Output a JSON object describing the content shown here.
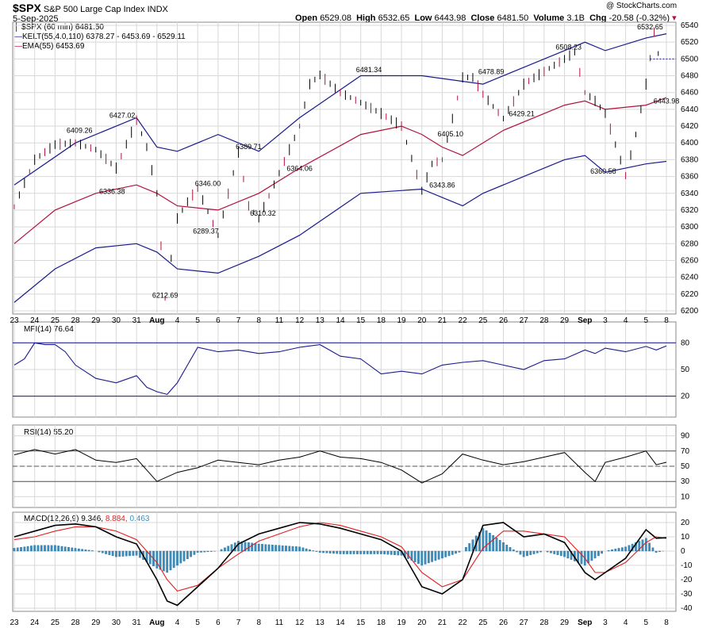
{
  "header": {
    "symbol": "$SPX",
    "name": "S&P 500 Large Cap Index",
    "exchange": "INDX",
    "date": "5-Sep-2025",
    "open_label": "Open",
    "open": "6529.08",
    "high_label": "High",
    "high": "6532.65",
    "low_label": "Low",
    "low": "6443.98",
    "close_label": "Close",
    "close": "6481.50",
    "volume_label": "Volume",
    "volume": "3.1B",
    "chg_label": "Chg",
    "chg": "-20.58 (-0.32%)",
    "watermark": "@ StockCharts.com"
  },
  "legend": {
    "price": "$SPX (60 min) 6481.50",
    "kelt": "KELT(55,4.0,110) 6378.27 - 6453.69 - 6529.11",
    "ema": "EMA(55) 6453.69"
  },
  "colors": {
    "kelt": "#1a1a8c",
    "ema": "#b0123c",
    "price": "#000000",
    "mfi": "#1a1a8c",
    "macd_signal": "#e02020",
    "hist": "#3a8fc0",
    "grid": "#d8d8d8",
    "dash": "#1a1a8c"
  },
  "x_labels": [
    {
      "i": 0,
      "t": "23"
    },
    {
      "i": 1,
      "t": "24"
    },
    {
      "i": 2,
      "t": "25"
    },
    {
      "i": 3,
      "t": "28"
    },
    {
      "i": 4,
      "t": "29"
    },
    {
      "i": 5,
      "t": "30"
    },
    {
      "i": 6,
      "t": "31"
    },
    {
      "i": 7,
      "t": "Aug",
      "b": true
    },
    {
      "i": 8,
      "t": "4"
    },
    {
      "i": 9,
      "t": "5"
    },
    {
      "i": 10,
      "t": "6"
    },
    {
      "i": 11,
      "t": "7"
    },
    {
      "i": 12,
      "t": "8"
    },
    {
      "i": 13,
      "t": "11"
    },
    {
      "i": 14,
      "t": "12"
    },
    {
      "i": 15,
      "t": "13"
    },
    {
      "i": 16,
      "t": "14"
    },
    {
      "i": 17,
      "t": "15"
    },
    {
      "i": 18,
      "t": "18"
    },
    {
      "i": 19,
      "t": "19"
    },
    {
      "i": 20,
      "t": "20"
    },
    {
      "i": 21,
      "t": "21"
    },
    {
      "i": 22,
      "t": "22"
    },
    {
      "i": 23,
      "t": "25"
    },
    {
      "i": 24,
      "t": "26"
    },
    {
      "i": 25,
      "t": "27"
    },
    {
      "i": 26,
      "t": "28"
    },
    {
      "i": 27,
      "t": "29"
    },
    {
      "i": 28,
      "t": "Sep",
      "b": true
    },
    {
      "i": 29,
      "t": "3"
    },
    {
      "i": 30,
      "t": "4"
    },
    {
      "i": 31,
      "t": "5"
    },
    {
      "i": 32,
      "t": "8"
    }
  ],
  "indicators": {
    "mfi": {
      "label": "MFI(14) 76.64",
      "value": 76.64
    },
    "rsi": {
      "label": "RSI(14) 55.20",
      "value": 55.2
    },
    "macd": {
      "label": "MACD(12,26,9) 9.346,",
      "signal": "8.884,",
      "hist": "0.463"
    }
  },
  "chart_data": [
    {
      "type": "line",
      "title": "$SPX (60 min)",
      "ylim": [
        6200,
        6540
      ],
      "yticks": [
        6200,
        6220,
        6240,
        6260,
        6280,
        6300,
        6320,
        6340,
        6360,
        6380,
        6400,
        6420,
        6440,
        6460,
        6480,
        6500,
        6520,
        6540
      ],
      "series": [
        {
          "name": "Price",
          "x": [
            0,
            1,
            2,
            3,
            4,
            5,
            6,
            6.5,
            7,
            7.4,
            8,
            8.5,
            9,
            10,
            11,
            11.5,
            12,
            13,
            14,
            14.5,
            15,
            16,
            17,
            18,
            19,
            20,
            20.5,
            21,
            22,
            22.5,
            23,
            24,
            25,
            26,
            27,
            27.5,
            28,
            28.5,
            29,
            30,
            30.5,
            31,
            31.4,
            31.8
          ],
          "values": [
            6324,
            6380,
            6398,
            6400,
            6392,
            6370,
            6427,
            6395,
            6340,
            6215,
            6310,
            6330,
            6346,
            6290,
            6389,
            6325,
            6310,
            6364,
            6420,
            6470,
            6481,
            6460,
            6448,
            6435,
            6420,
            6343,
            6375,
            6380,
            6478,
            6478,
            6458,
            6429,
            6470,
            6485,
            6500,
            6508,
            6460,
            6450,
            6435,
            6361,
            6410,
            6470,
            6532,
            6481
          ]
        },
        {
          "name": "KELT upper",
          "x": [
            0,
            3,
            6,
            7,
            8,
            10,
            12,
            14,
            17,
            20,
            23,
            25,
            27,
            28,
            29,
            31,
            32
          ],
          "values": [
            6350,
            6400,
            6430,
            6395,
            6390,
            6410,
            6390,
            6430,
            6480,
            6480,
            6470,
            6490,
            6510,
            6520,
            6510,
            6525,
            6530
          ]
        },
        {
          "name": "KELT lower",
          "x": [
            0,
            2,
            4,
            6,
            7,
            8,
            10,
            12,
            14,
            17,
            20,
            22,
            23,
            25,
            27,
            28,
            29,
            31,
            32
          ],
          "values": [
            6210,
            6250,
            6275,
            6280,
            6270,
            6250,
            6245,
            6265,
            6290,
            6340,
            6345,
            6325,
            6340,
            6360,
            6380,
            6385,
            6365,
            6375,
            6378
          ]
        },
        {
          "name": "EMA(55)",
          "x": [
            0,
            2,
            4,
            6,
            7,
            8,
            10,
            12,
            14,
            17,
            19,
            20,
            21,
            22,
            24,
            27,
            28,
            29,
            31,
            32
          ],
          "values": [
            6280,
            6320,
            6340,
            6350,
            6340,
            6325,
            6320,
            6340,
            6370,
            6410,
            6420,
            6410,
            6395,
            6385,
            6415,
            6445,
            6450,
            6440,
            6445,
            6454
          ]
        }
      ],
      "annotations": [
        {
          "x": 3.2,
          "y": 6409.26,
          "t": "6409.26"
        },
        {
          "x": 5.3,
          "y": 6427.02,
          "t": "6427.02"
        },
        {
          "x": 4.8,
          "y": 6336.38,
          "t": "6336.38"
        },
        {
          "x": 7.4,
          "y": 6212.69,
          "t": "6212.69"
        },
        {
          "x": 9.5,
          "y": 6346.0,
          "t": "6346.00"
        },
        {
          "x": 9.4,
          "y": 6289.37,
          "t": "6289.37"
        },
        {
          "x": 11.5,
          "y": 6389.71,
          "t": "6389.71"
        },
        {
          "x": 12.2,
          "y": 6310.32,
          "t": "6310.32"
        },
        {
          "x": 14,
          "y": 6364.06,
          "t": "6364.06"
        },
        {
          "x": 17.4,
          "y": 6481.34,
          "t": "6481.34"
        },
        {
          "x": 21.4,
          "y": 6405.1,
          "t": "6405.10"
        },
        {
          "x": 21.0,
          "y": 6343.86,
          "t": "6343.86"
        },
        {
          "x": 23.4,
          "y": 6478.89,
          "t": "6478.89"
        },
        {
          "x": 24.9,
          "y": 6429.21,
          "t": "6429.21"
        },
        {
          "x": 27.2,
          "y": 6508.23,
          "t": "6508.23"
        },
        {
          "x": 28.9,
          "y": 6360.58,
          "t": "6360.58"
        },
        {
          "x": 31.2,
          "y": 6532.65,
          "t": "6532.65"
        },
        {
          "x": 32,
          "y": 6443.98,
          "t": "6443.98"
        }
      ]
    },
    {
      "type": "line",
      "title": "MFI(14)",
      "ylim": [
        0,
        100
      ],
      "yticks": [
        20,
        50,
        80
      ],
      "x": [
        0,
        0.5,
        1,
        1.5,
        2,
        2.5,
        3,
        4,
        5,
        6,
        6.5,
        7,
        7.5,
        8,
        9,
        10,
        11,
        12,
        13,
        14,
        15,
        16,
        17,
        18,
        19,
        20,
        21,
        22,
        23,
        24,
        25,
        26,
        27,
        28,
        28.5,
        29,
        30,
        31,
        31.5,
        32
      ],
      "values": [
        55,
        62,
        80,
        78,
        78,
        70,
        55,
        40,
        35,
        43,
        30,
        25,
        22,
        35,
        75,
        70,
        72,
        68,
        70,
        75,
        78,
        65,
        62,
        45,
        48,
        45,
        55,
        58,
        60,
        55,
        50,
        60,
        62,
        72,
        68,
        74,
        70,
        76,
        72,
        76.64
      ]
    },
    {
      "type": "line",
      "title": "RSI(14)",
      "ylim": [
        0,
        100
      ],
      "yticks": [
        10,
        30,
        50,
        70,
        90
      ],
      "x": [
        0,
        1,
        2,
        3,
        4,
        5,
        6,
        7,
        8,
        9,
        10,
        11,
        12,
        13,
        14,
        15,
        16,
        17,
        18,
        19,
        20,
        21,
        22,
        23,
        24,
        25,
        26,
        27,
        28,
        28.5,
        29,
        30,
        31,
        31.5,
        32
      ],
      "values": [
        65,
        72,
        66,
        72,
        58,
        55,
        60,
        30,
        42,
        48,
        58,
        55,
        52,
        58,
        62,
        70,
        62,
        60,
        55,
        45,
        28,
        40,
        66,
        58,
        52,
        56,
        62,
        68,
        42,
        30,
        55,
        62,
        70,
        52,
        55.2
      ]
    },
    {
      "type": "line",
      "title": "MACD(12,26,9)",
      "ylim": [
        -40,
        25
      ],
      "yticks": [
        -40,
        -30,
        -20,
        -10,
        0,
        10,
        20
      ],
      "x": [
        0,
        1,
        2,
        3,
        4,
        5,
        6,
        7,
        7.5,
        8,
        9,
        10,
        11,
        12,
        13,
        14,
        15,
        16,
        17,
        18,
        19,
        20,
        21,
        22,
        23,
        24,
        25,
        26,
        27,
        28,
        28.5,
        29,
        30,
        31,
        31.5,
        32
      ],
      "series": [
        {
          "name": "MACD",
          "values": [
            10,
            14,
            18,
            19,
            17,
            10,
            5,
            -20,
            -35,
            -38,
            -25,
            -12,
            5,
            12,
            16,
            20,
            19,
            16,
            12,
            8,
            0,
            -25,
            -30,
            -20,
            18,
            20,
            10,
            12,
            6,
            -15,
            -20,
            -15,
            -5,
            15,
            9,
            9.346
          ]
        },
        {
          "name": "Signal",
          "values": [
            8,
            10,
            14,
            17,
            17,
            14,
            8,
            -8,
            -20,
            -28,
            -24,
            -12,
            -2,
            7,
            12,
            17,
            20,
            18,
            14,
            10,
            3,
            -15,
            -25,
            -20,
            2,
            14,
            14,
            12,
            10,
            -5,
            -15,
            -15,
            -8,
            6,
            10,
            8.884
          ]
        },
        {
          "name": "Histogram",
          "values": [
            2,
            4,
            4,
            2,
            0,
            -4,
            -3,
            -12,
            -15,
            -10,
            -1,
            0,
            7,
            5,
            4,
            3,
            -1,
            -2,
            -2,
            -2,
            -3,
            -10,
            -5,
            0,
            16,
            6,
            -4,
            0,
            -4,
            -10,
            -5,
            0,
            3,
            9,
            -1,
            0.463
          ]
        }
      ]
    }
  ]
}
